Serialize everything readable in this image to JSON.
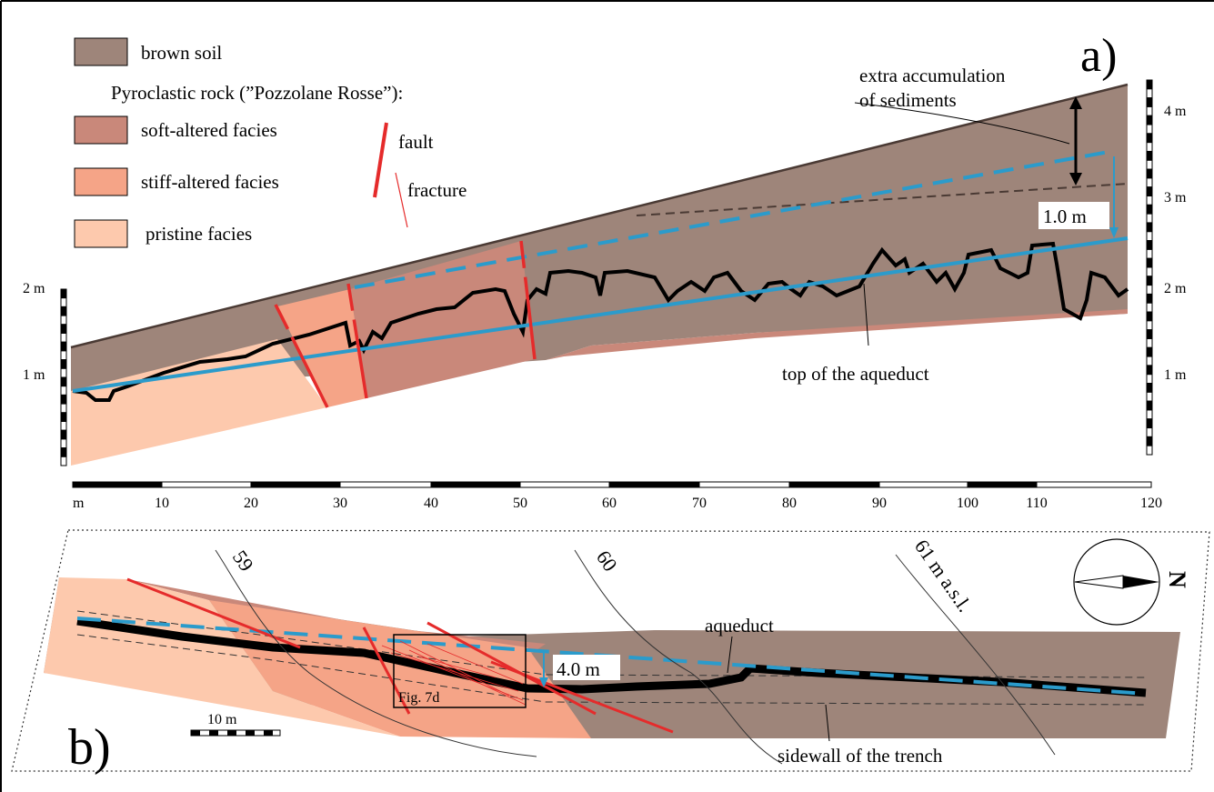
{
  "panel_a": {
    "label": "a)",
    "legend": {
      "brown_soil": "brown soil",
      "pyroclastic_heading": "Pyroclastic rock (”Pozzolane Rosse”):",
      "soft_altered": "soft-altered facies",
      "stiff_altered": "stiff-altered facies",
      "pristine": "pristine facies",
      "fault": "fault",
      "fracture": "fracture"
    },
    "annotations": {
      "extra_accumulation": [
        "extra accumulation",
        "of sediments"
      ],
      "offset": "1.0 m",
      "aqueduct_top": "top of the aqueduct"
    },
    "left_scale": [
      "2 m",
      "1 m"
    ],
    "right_scale": [
      "4 m",
      "3 m",
      "2 m",
      "1 m"
    ],
    "distance_scale": [
      "m",
      "10",
      "20",
      "30",
      "40",
      "50",
      "60",
      "70",
      "80",
      "90",
      "100",
      "110",
      "120"
    ]
  },
  "panel_b": {
    "label": "b)",
    "contours": [
      "59",
      "60",
      "61 m a.s.l."
    ],
    "aqueduct": "aqueduct",
    "offset": "4.0 m",
    "inset": "Fig. 7d",
    "scale": "10 m",
    "trench": "sidewall of the trench",
    "north": "N"
  }
}
